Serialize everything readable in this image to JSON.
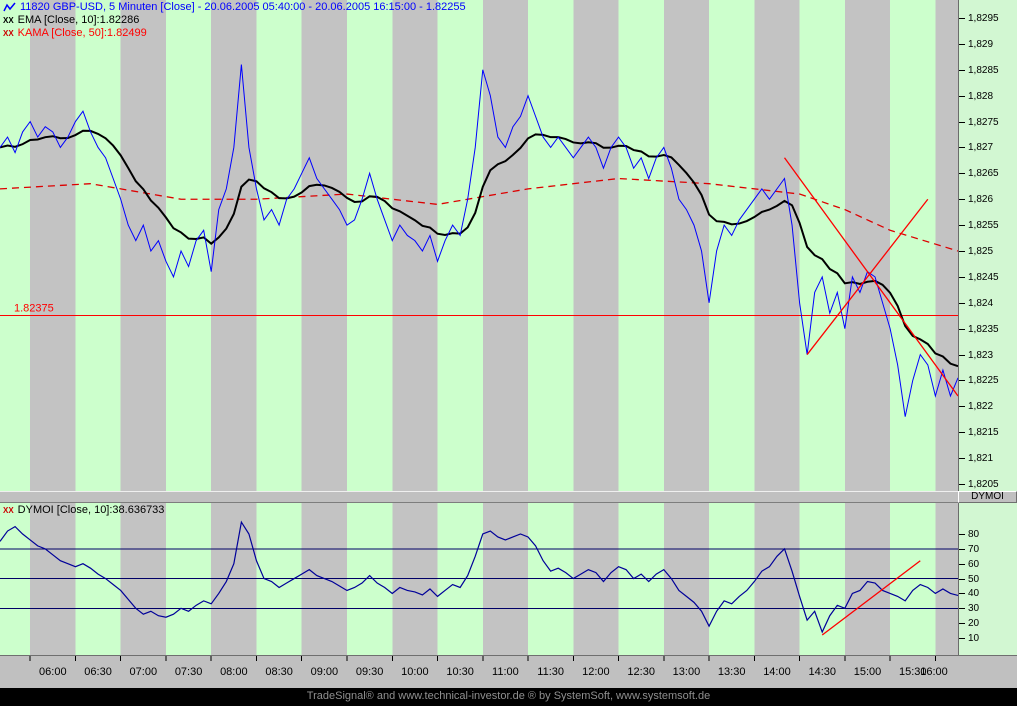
{
  "window": {
    "watermark": "TradeSignal® and www.technical-investor.de ® by SystemSoft, www.systemsoft.de"
  },
  "colors": {
    "stripe_green": "#ccffcc",
    "stripe_gray": "#c3c3c3",
    "close_line": "#0000ff",
    "ema_line": "#000000",
    "kama_line": "#dd0000",
    "annotation_red": "#ff0000",
    "dymoi_line": "#000099",
    "level_line": "#000066"
  },
  "legend": {
    "title": {
      "text": "11820 GBP-USD, 5 Minuten [Close] - 20.06.2005 05:40:00 - 20.06.2005 16:15:00 - 1.82255"
    },
    "ema": {
      "icon_text": "XX",
      "text": "EMA [Close, 10]:1.82286"
    },
    "kama": {
      "icon_text": "XX",
      "text": "KAMA [Close, 50]:1.82499"
    },
    "dymoi": {
      "icon_text": "XX",
      "text": "DYMOI [Close, 10]:38.636733"
    }
  },
  "panels": {
    "dymoi_header": "DYMOI"
  },
  "chart_data": [
    {
      "type": "line",
      "panel": "price",
      "symbol": "GBP-USD",
      "interval": "5 Minuten",
      "x_start": "05:40",
      "x_end": "16:15",
      "step_minutes": 5,
      "total_minutes": 635,
      "y_axis_labels": [
        "1,8295",
        "1,829",
        "1,8285",
        "1,828",
        "1,8275",
        "1,827",
        "1,8265",
        "1,826",
        "1,8255",
        "1,825",
        "1,8245",
        "1,824",
        "1,8235",
        "1,823",
        "1,8225",
        "1,822",
        "1,8215",
        "1,821",
        "1,8205"
      ],
      "time_axis_labels": [
        "06:00",
        "06:30",
        "07:00",
        "07:30",
        "08:00",
        "08:30",
        "09:00",
        "09:30",
        "10:00",
        "10:30",
        "11:00",
        "11:30",
        "12:00",
        "12:30",
        "13:00",
        "13:30",
        "14:00",
        "14:30",
        "15:00",
        "15:30",
        "16:00"
      ],
      "series": [
        {
          "name": "Close",
          "last_value": 1.82255,
          "values": [
            1.827,
            1.8272,
            1.8269,
            1.8273,
            1.8275,
            1.8272,
            1.8274,
            1.8273,
            1.827,
            1.8272,
            1.8275,
            1.8277,
            1.8273,
            1.827,
            1.8268,
            1.8264,
            1.826,
            1.8255,
            1.8252,
            1.8255,
            1.825,
            1.8252,
            1.8248,
            1.8245,
            1.825,
            1.8247,
            1.8252,
            1.8254,
            1.8246,
            1.8258,
            1.8262,
            1.827,
            1.8286,
            1.827,
            1.8262,
            1.8256,
            1.8258,
            1.8255,
            1.826,
            1.8262,
            1.8265,
            1.8268,
            1.8264,
            1.8262,
            1.826,
            1.8258,
            1.8255,
            1.8256,
            1.826,
            1.8265,
            1.826,
            1.8256,
            1.8252,
            1.8255,
            1.8253,
            1.8252,
            1.825,
            1.8253,
            1.8248,
            1.8252,
            1.8255,
            1.8253,
            1.826,
            1.827,
            1.8285,
            1.828,
            1.8272,
            1.827,
            1.8274,
            1.8276,
            1.828,
            1.8276,
            1.8272,
            1.827,
            1.8272,
            1.827,
            1.8268,
            1.827,
            1.8272,
            1.827,
            1.8266,
            1.827,
            1.8272,
            1.827,
            1.8266,
            1.8268,
            1.8264,
            1.8268,
            1.827,
            1.8266,
            1.826,
            1.8258,
            1.8255,
            1.825,
            1.824,
            1.825,
            1.8255,
            1.8253,
            1.8256,
            1.8258,
            1.826,
            1.8262,
            1.826,
            1.8262,
            1.8264,
            1.8255,
            1.824,
            1.823,
            1.8242,
            1.8245,
            1.8238,
            1.8242,
            1.8235,
            1.8245,
            1.8242,
            1.8246,
            1.8245,
            1.824,
            1.8235,
            1.8228,
            1.8218,
            1.8225,
            1.823,
            1.8228,
            1.8222,
            1.8227,
            1.8222,
            1.82255
          ]
        },
        {
          "name": "EMA",
          "params": "[Close, 10]",
          "derived_from": "Close",
          "period": 10,
          "last_value": 1.82286
        },
        {
          "name": "KAMA",
          "params": "[Close, 50]",
          "style": "dashed",
          "last_value": 1.82499,
          "points": [
            [
              0,
              1.8262
            ],
            [
              60,
              1.8263
            ],
            [
              120,
              1.826
            ],
            [
              170,
              1.826
            ],
            [
              230,
              1.8261
            ],
            [
              290,
              1.8259
            ],
            [
              350,
              1.8262
            ],
            [
              410,
              1.8264
            ],
            [
              470,
              1.8263
            ],
            [
              530,
              1.8261
            ],
            [
              560,
              1.8258
            ],
            [
              590,
              1.8254
            ],
            [
              635,
              1.825
            ]
          ]
        }
      ],
      "annotations": {
        "hline": {
          "value": 1.82375,
          "label": "1.82375"
        },
        "trendlines": [
          {
            "from": [
              520,
              1.8268
            ],
            "to": [
              635,
              1.8222
            ]
          },
          {
            "from": [
              535,
              1.823
            ],
            "to": [
              615,
              1.826
            ]
          }
        ]
      }
    },
    {
      "type": "line",
      "panel": "oscillator",
      "name": "DYMOI",
      "y_axis_labels": [
        "80",
        "70",
        "60",
        "50",
        "40",
        "30",
        "20",
        "10"
      ],
      "levels": [
        70,
        50,
        30
      ],
      "last_value": 38.636733,
      "values": [
        75,
        82,
        85,
        80,
        76,
        72,
        70,
        66,
        62,
        60,
        58,
        60,
        57,
        53,
        50,
        46,
        42,
        36,
        30,
        26,
        28,
        25,
        24,
        26,
        30,
        28,
        32,
        35,
        33,
        40,
        48,
        60,
        88,
        80,
        62,
        50,
        48,
        44,
        47,
        50,
        53,
        56,
        52,
        50,
        48,
        45,
        42,
        44,
        47,
        52,
        47,
        44,
        40,
        44,
        42,
        41,
        39,
        43,
        38,
        42,
        46,
        44,
        52,
        65,
        80,
        82,
        78,
        76,
        78,
        80,
        78,
        72,
        62,
        55,
        57,
        54,
        50,
        53,
        56,
        54,
        48,
        54,
        58,
        56,
        50,
        53,
        48,
        53,
        56,
        50,
        42,
        38,
        34,
        28,
        18,
        28,
        35,
        33,
        38,
        42,
        48,
        55,
        58,
        65,
        70,
        55,
        38,
        22,
        28,
        14,
        25,
        32,
        30,
        40,
        42,
        48,
        47,
        42,
        40,
        38,
        35,
        42,
        46,
        44,
        40,
        43,
        40,
        38.64
      ],
      "trendline": {
        "from": [
          545,
          12
        ],
        "to": [
          610,
          62
        ]
      }
    }
  ]
}
